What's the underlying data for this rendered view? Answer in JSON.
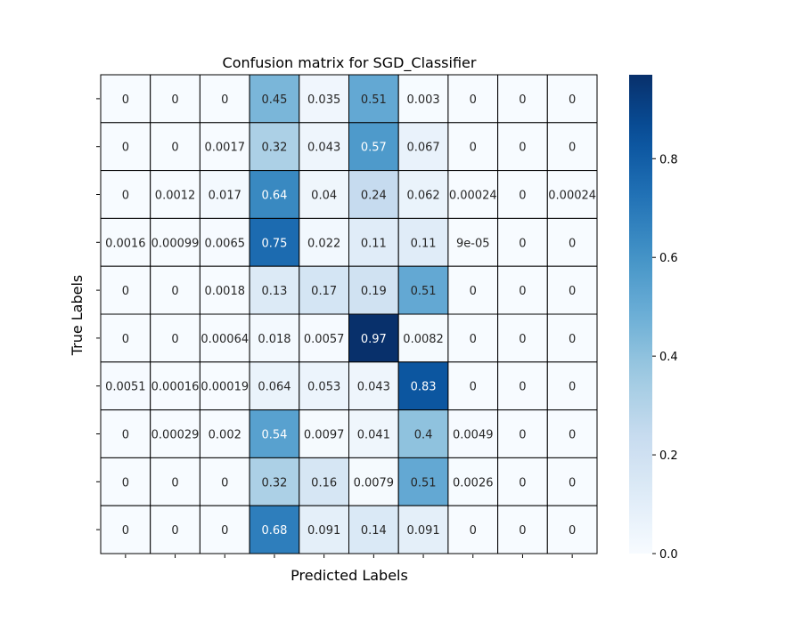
{
  "chart_data": {
    "type": "heatmap",
    "title": "Confusion matrix for SGD_Classifier",
    "xlabel": "Predicted Labels",
    "ylabel": "True Labels",
    "colormap": "Blues",
    "vmin": 0.0,
    "vmax": 0.97,
    "colorbar_ticks": [
      0.0,
      0.2,
      0.4,
      0.6,
      0.8
    ],
    "colorbar_tick_labels": [
      "0.0",
      "0.2",
      "0.4",
      "0.6",
      "0.8"
    ],
    "values": [
      [
        0,
        0,
        0,
        0.45,
        0.035,
        0.51,
        0.003,
        0,
        0,
        0
      ],
      [
        0,
        0,
        0.0017,
        0.32,
        0.043,
        0.57,
        0.067,
        0,
        0,
        0
      ],
      [
        0,
        0.0012,
        0.017,
        0.64,
        0.04,
        0.24,
        0.062,
        0.00024,
        0,
        0.00024
      ],
      [
        0.0016,
        0.00099,
        0.0065,
        0.75,
        0.022,
        0.11,
        0.11,
        9e-05,
        0,
        0
      ],
      [
        0,
        0,
        0.0018,
        0.13,
        0.17,
        0.19,
        0.51,
        0,
        0,
        0
      ],
      [
        0,
        0,
        0.00064,
        0.018,
        0.0057,
        0.97,
        0.0082,
        0,
        0,
        0
      ],
      [
        0.0051,
        0.00016,
        0.00019,
        0.064,
        0.053,
        0.043,
        0.83,
        0,
        0,
        0
      ],
      [
        0,
        0.00029,
        0.002,
        0.54,
        0.0097,
        0.041,
        0.4,
        0.0049,
        0,
        0
      ],
      [
        0,
        0,
        0,
        0.32,
        0.16,
        0.0079,
        0.51,
        0.0026,
        0,
        0
      ],
      [
        0,
        0,
        0,
        0.68,
        0.091,
        0.14,
        0.091,
        0,
        0,
        0
      ]
    ],
    "annotations": [
      [
        "0",
        "0",
        "0",
        "0.45",
        "0.035",
        "0.51",
        "0.003",
        "0",
        "0",
        "0"
      ],
      [
        "0",
        "0",
        "0.0017",
        "0.32",
        "0.043",
        "0.57",
        "0.067",
        "0",
        "0",
        "0"
      ],
      [
        "0",
        "0.0012",
        "0.017",
        "0.64",
        "0.04",
        "0.24",
        "0.062",
        "0.00024",
        "0",
        "0.00024"
      ],
      [
        "0.0016",
        "0.00099",
        "0.0065",
        "0.75",
        "0.022",
        "0.11",
        "0.11",
        "9e-05",
        "0",
        "0"
      ],
      [
        "0",
        "0",
        "0.0018",
        "0.13",
        "0.17",
        "0.19",
        "0.51",
        "0",
        "0",
        "0"
      ],
      [
        "0",
        "0",
        "0.00064",
        "0.018",
        "0.0057",
        "0.97",
        "0.0082",
        "0",
        "0",
        "0"
      ],
      [
        "0.0051",
        "0.00016",
        "0.00019",
        "0.064",
        "0.053",
        "0.043",
        "0.83",
        "0",
        "0",
        "0"
      ],
      [
        "0",
        "0.00029",
        "0.002",
        "0.54",
        "0.0097",
        "0.041",
        "0.4",
        "0.0049",
        "0",
        "0"
      ],
      [
        "0",
        "0",
        "0",
        "0.32",
        "0.16",
        "0.0079",
        "0.51",
        "0.0026",
        "0",
        "0"
      ],
      [
        "0",
        "0",
        "0",
        "0.68",
        "0.091",
        "0.14",
        "0.091",
        "0",
        "0",
        "0"
      ]
    ],
    "x_tick_labels": [],
    "y_tick_labels": []
  }
}
